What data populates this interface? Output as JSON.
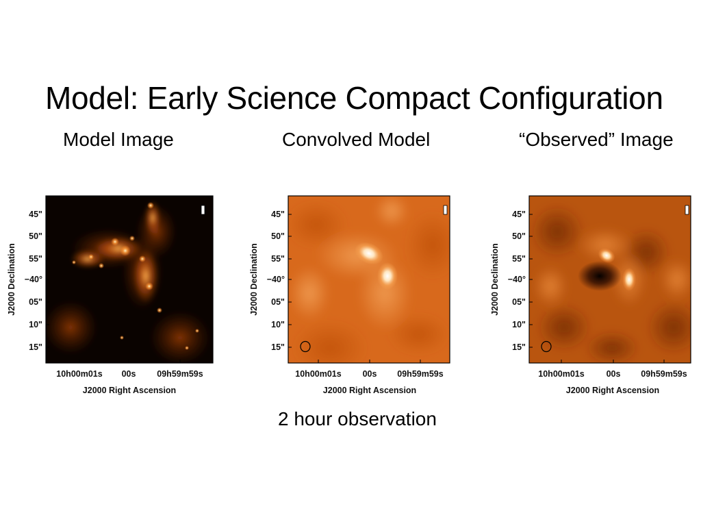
{
  "slide": {
    "title": "Model: Early Science Compact Configuration",
    "caption": "2 hour observation"
  },
  "panels": [
    {
      "id": "model",
      "heading": "Model Image",
      "colormap": "black-orange-white",
      "show_beam": false
    },
    {
      "id": "convolved",
      "heading": "Convolved Model",
      "colormap": "orange-white",
      "show_beam": true
    },
    {
      "id": "observed",
      "heading": "“Observed” Image",
      "colormap": "dark-orange-white",
      "show_beam": true
    }
  ],
  "axes": {
    "x_label": "J2000 Right Ascension",
    "y_label": "J2000 Declination",
    "x_ticks": [
      "10h00m01s",
      "00s",
      "09h59m59s"
    ],
    "y_ticks": [
      "45\"",
      "50\"",
      "55\"",
      "−40°",
      "05\"",
      "10\"",
      "15\""
    ]
  },
  "colors": {
    "title_text": "#000000",
    "orange_base": "#e07a26",
    "dark_background": "#0a0300"
  }
}
